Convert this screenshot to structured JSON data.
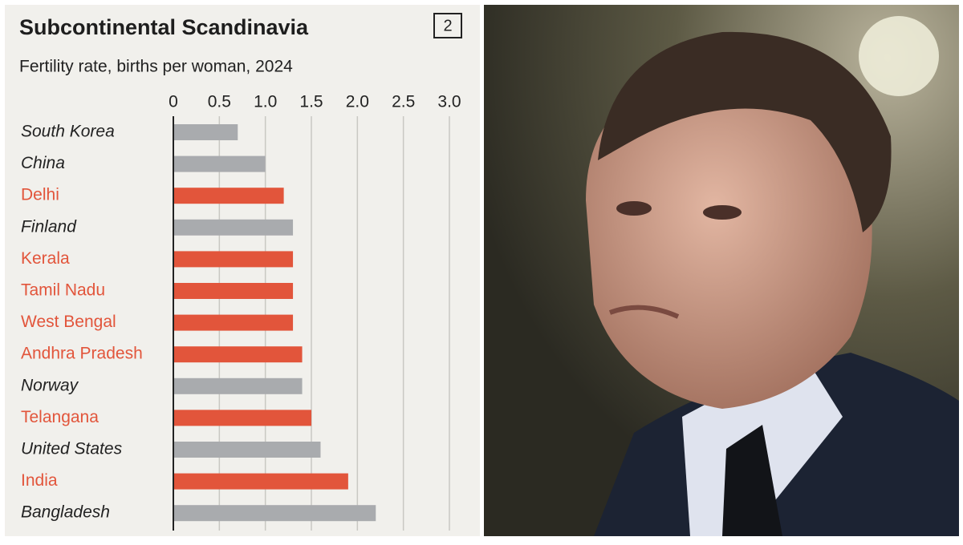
{
  "chart_data": {
    "type": "bar",
    "orientation": "horizontal",
    "title": "Subcontinental Scandinavia",
    "badge": "2",
    "subtitle": "Fertility rate, births per woman, 2024",
    "categories": [
      "South Korea",
      "China",
      "Delhi",
      "Finland",
      "Kerala",
      "Tamil Nadu",
      "West Bengal",
      "Andhra Pradesh",
      "Norway",
      "Telangana",
      "United States",
      "India",
      "Bangladesh"
    ],
    "values": [
      0.7,
      1.0,
      1.2,
      1.3,
      1.3,
      1.3,
      1.3,
      1.4,
      1.4,
      1.5,
      1.6,
      1.9,
      2.2
    ],
    "colors": [
      "#a9abae",
      "#a9abae",
      "#e2553b",
      "#a9abae",
      "#e2553b",
      "#e2553b",
      "#e2553b",
      "#e2553b",
      "#a9abae",
      "#e2553b",
      "#a9abae",
      "#e2553b",
      "#a9abae"
    ],
    "xlim": [
      0,
      3
    ],
    "xticks": [
      0,
      0.5,
      {
        "value": 1,
        "label": "1.0"
      },
      1.5,
      {
        "value": 2,
        "label": "2.0"
      },
      2.5,
      {
        "value": 3,
        "label": "3.0"
      }
    ],
    "grid": true
  }
}
